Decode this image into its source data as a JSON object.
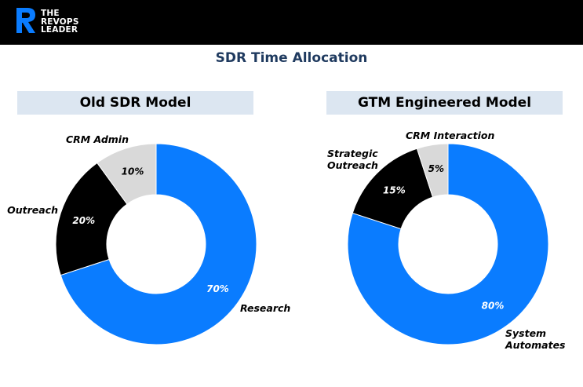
{
  "brand": {
    "lines": [
      "THE",
      "REVOPS",
      "LEADER"
    ]
  },
  "title": "SDR Time Allocation",
  "chart_data": [
    {
      "type": "pie",
      "title": "Old SDR Model",
      "donut": true,
      "slices": [
        {
          "label": "Research",
          "value": 70,
          "display": "70%",
          "color": "#0a7cff",
          "label_color": "#ffffff"
        },
        {
          "label": "Outreach",
          "value": 20,
          "display": "20%",
          "color": "#000000",
          "label_color": "#ffffff"
        },
        {
          "label": "CRM Admin",
          "value": 10,
          "display": "10%",
          "color": "#d9d9d9",
          "label_color": "#000000"
        }
      ]
    },
    {
      "type": "pie",
      "title": "GTM Engineered Model",
      "donut": true,
      "slices": [
        {
          "label": "System Automates",
          "value": 80,
          "display": "80%",
          "color": "#0a7cff",
          "label_color": "#ffffff"
        },
        {
          "label": "Strategic Outreach",
          "value": 15,
          "display": "15%",
          "color": "#000000",
          "label_color": "#ffffff"
        },
        {
          "label": "CRM Interaction",
          "value": 5,
          "display": "5%",
          "color": "#d9d9d9",
          "label_color": "#000000"
        }
      ]
    }
  ]
}
